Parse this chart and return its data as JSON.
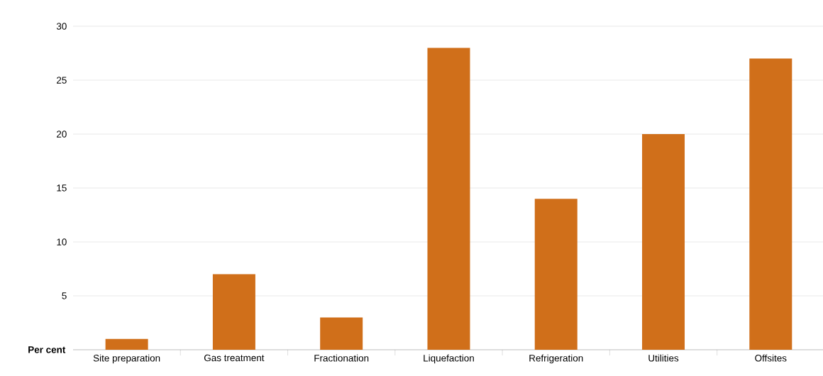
{
  "chart_data": {
    "type": "bar",
    "ylabel": "Per cent",
    "categories": [
      "Site preparation",
      "Gas treatment",
      "Fractionation",
      "Liquefaction",
      "Refrigeration",
      "Utilities",
      "Offsites"
    ],
    "values": [
      1,
      7,
      3,
      28,
      14,
      20,
      27
    ],
    "color": "#d06f1a",
    "ylim": [
      0,
      30
    ],
    "yticks": [
      5,
      10,
      15,
      20,
      25,
      30
    ],
    "grid": "y"
  }
}
